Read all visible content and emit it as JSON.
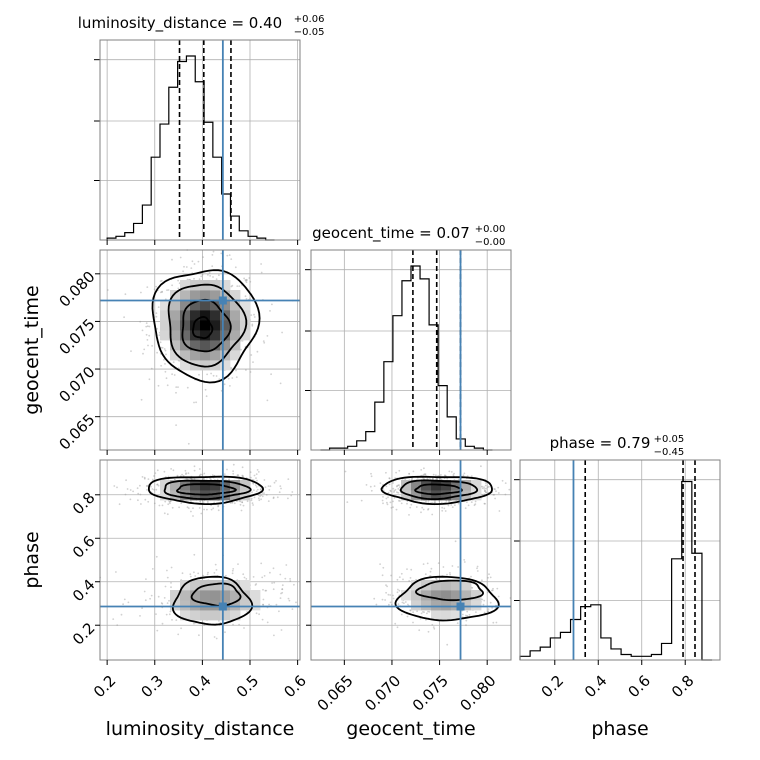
{
  "colors": {
    "truth": "#4682b4",
    "hist": "#000000",
    "grid": "#b0b0b0",
    "scatter": "#9a9a9a"
  },
  "chart_data": {
    "type": "corner",
    "parameters": [
      "luminosity_distance",
      "geocent_time",
      "phase"
    ],
    "truths": {
      "luminosity_distance": 0.443,
      "geocent_time": 0.0772,
      "phase": 0.286
    },
    "ranges": {
      "luminosity_distance": [
        0.185,
        0.605
      ],
      "geocent_time": [
        0.0615,
        0.0825
      ],
      "phase": [
        0.04,
        0.96
      ]
    },
    "ticks": {
      "luminosity_distance": [
        0.2,
        0.3,
        0.4,
        0.5,
        0.6
      ],
      "geocent_time": [
        0.065,
        0.07,
        0.075,
        0.08
      ],
      "phase": [
        0.2,
        0.4,
        0.6,
        0.8
      ]
    },
    "tick_labels": {
      "luminosity_distance": [
        "0.2",
        "0.3",
        "0.4",
        "0.5",
        "0.6"
      ],
      "geocent_time": [
        "0.065",
        "0.070",
        "0.075",
        "0.080"
      ],
      "phase": [
        "0.2",
        "0.4",
        "0.6",
        "0.8"
      ]
    },
    "titles": [
      {
        "param": "luminosity_distance",
        "label": "luminosity_distance = 0.40",
        "plus": "+0.06",
        "minus": "−0.05"
      },
      {
        "param": "geocent_time",
        "label": "geocent_time = 0.07",
        "plus": "+0.00",
        "minus": "−0.00"
      },
      {
        "param": "phase",
        "label": "phase = 0.79",
        "plus": "+0.05",
        "minus": "−0.45"
      }
    ],
    "quantiles": {
      "luminosity_distance": [
        0.352,
        0.403,
        0.46
      ],
      "geocent_time": [
        0.0722,
        0.0747,
        0.0772
      ],
      "phase": [
        0.34,
        0.79,
        0.845
      ]
    },
    "histograms": {
      "luminosity_distance": {
        "start": 0.2,
        "width": 0.0185,
        "counts": [
          0.01,
          0.02,
          0.04,
          0.09,
          0.19,
          0.45,
          0.63,
          0.83,
          0.97,
          1.0,
          0.86,
          0.64,
          0.45,
          0.25,
          0.13,
          0.05,
          0.02,
          0.01,
          0.0
        ]
      },
      "geocent_time": {
        "start": 0.0625,
        "width": 0.00095,
        "counts": [
          0.0,
          0.01,
          0.01,
          0.02,
          0.05,
          0.1,
          0.26,
          0.48,
          0.73,
          0.92,
          1.0,
          0.93,
          0.68,
          0.35,
          0.18,
          0.06,
          0.02,
          0.01,
          0.0
        ]
      },
      "phase": {
        "start": 0.04,
        "width": 0.0465,
        "counts": [
          0.02,
          0.05,
          0.07,
          0.12,
          0.15,
          0.22,
          0.29,
          0.3,
          0.12,
          0.06,
          0.03,
          0.02,
          0.02,
          0.03,
          0.09,
          0.55,
          0.97,
          0.58,
          0.0
        ]
      }
    },
    "density_2d": [
      {
        "x": "luminosity_distance",
        "y": "geocent_time",
        "blobs": [
          {
            "mx": 0.405,
            "my": 0.0747,
            "sx": 0.045,
            "sy": 0.0024,
            "w": 1.0
          }
        ],
        "contours": [
          {
            "mx": 0.405,
            "my": 0.0748,
            "ax": 0.11,
            "ay": 0.0058
          },
          {
            "mx": 0.405,
            "my": 0.0747,
            "ax": 0.08,
            "ay": 0.0043
          },
          {
            "mx": 0.405,
            "my": 0.0745,
            "ax": 0.05,
            "ay": 0.0027
          },
          {
            "mx": 0.4,
            "my": 0.0743,
            "ax": 0.02,
            "ay": 0.0011
          }
        ]
      },
      {
        "x": "luminosity_distance",
        "y": "phase",
        "blobs": [
          {
            "mx": 0.41,
            "my": 0.825,
            "sx": 0.05,
            "sy": 0.03,
            "w": 1.0
          },
          {
            "mx": 0.42,
            "my": 0.32,
            "sx": 0.06,
            "sy": 0.06,
            "w": 0.45
          }
        ],
        "contours": [
          {
            "mx": 0.405,
            "my": 0.825,
            "ax": 0.12,
            "ay": 0.062
          },
          {
            "mx": 0.405,
            "my": 0.825,
            "ax": 0.09,
            "ay": 0.042
          },
          {
            "mx": 0.405,
            "my": 0.825,
            "ax": 0.06,
            "ay": 0.024
          },
          {
            "mx": 0.42,
            "my": 0.31,
            "ax": 0.08,
            "ay": 0.11
          },
          {
            "mx": 0.43,
            "my": 0.34,
            "ax": 0.05,
            "ay": 0.05
          }
        ]
      },
      {
        "x": "geocent_time",
        "y": "phase",
        "blobs": [
          {
            "mx": 0.0748,
            "my": 0.825,
            "sx": 0.0022,
            "sy": 0.03,
            "w": 1.0
          },
          {
            "mx": 0.0755,
            "my": 0.33,
            "sx": 0.0025,
            "sy": 0.055,
            "w": 0.45
          }
        ],
        "contours": [
          {
            "mx": 0.0748,
            "my": 0.825,
            "ax": 0.0058,
            "ay": 0.062
          },
          {
            "mx": 0.0748,
            "my": 0.825,
            "ax": 0.004,
            "ay": 0.042
          },
          {
            "mx": 0.0748,
            "my": 0.825,
            "ax": 0.0024,
            "ay": 0.022
          },
          {
            "mx": 0.0758,
            "my": 0.32,
            "ax": 0.0052,
            "ay": 0.1
          },
          {
            "mx": 0.0762,
            "my": 0.36,
            "ax": 0.0034,
            "ay": 0.045
          }
        ]
      }
    ],
    "grid": true
  }
}
